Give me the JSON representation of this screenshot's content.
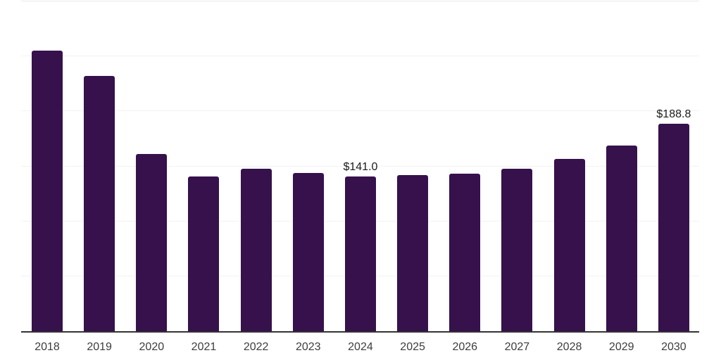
{
  "chart_style": {
    "bar_color": "#36114c",
    "gridline_color": "#f2f2f2",
    "top_gridline_color": "#e8e8e8",
    "axis_line_color": "#333333",
    "tick_label_color": "#3d3d3d",
    "data_label_color": "#1a1a1a",
    "background": "#ffffff"
  },
  "chart_data": {
    "type": "bar",
    "title": "",
    "xlabel": "",
    "ylabel": "",
    "categories": [
      "2018",
      "2019",
      "2020",
      "2021",
      "2022",
      "2023",
      "2024",
      "2025",
      "2026",
      "2027",
      "2028",
      "2029",
      "2030"
    ],
    "values": [
      255,
      232,
      161,
      141,
      148,
      144,
      141.0,
      142,
      143,
      148,
      157,
      169,
      188.8
    ],
    "point_labels": [
      "",
      "",
      "",
      "",
      "",
      "",
      "$141.0",
      "",
      "",
      "",
      "",
      "",
      "$188.8"
    ],
    "ylim": [
      0,
      300
    ],
    "gridline_step": 50,
    "grid": true,
    "y_tick_labels_visible": false,
    "legend": false,
    "legend_position": "none"
  }
}
